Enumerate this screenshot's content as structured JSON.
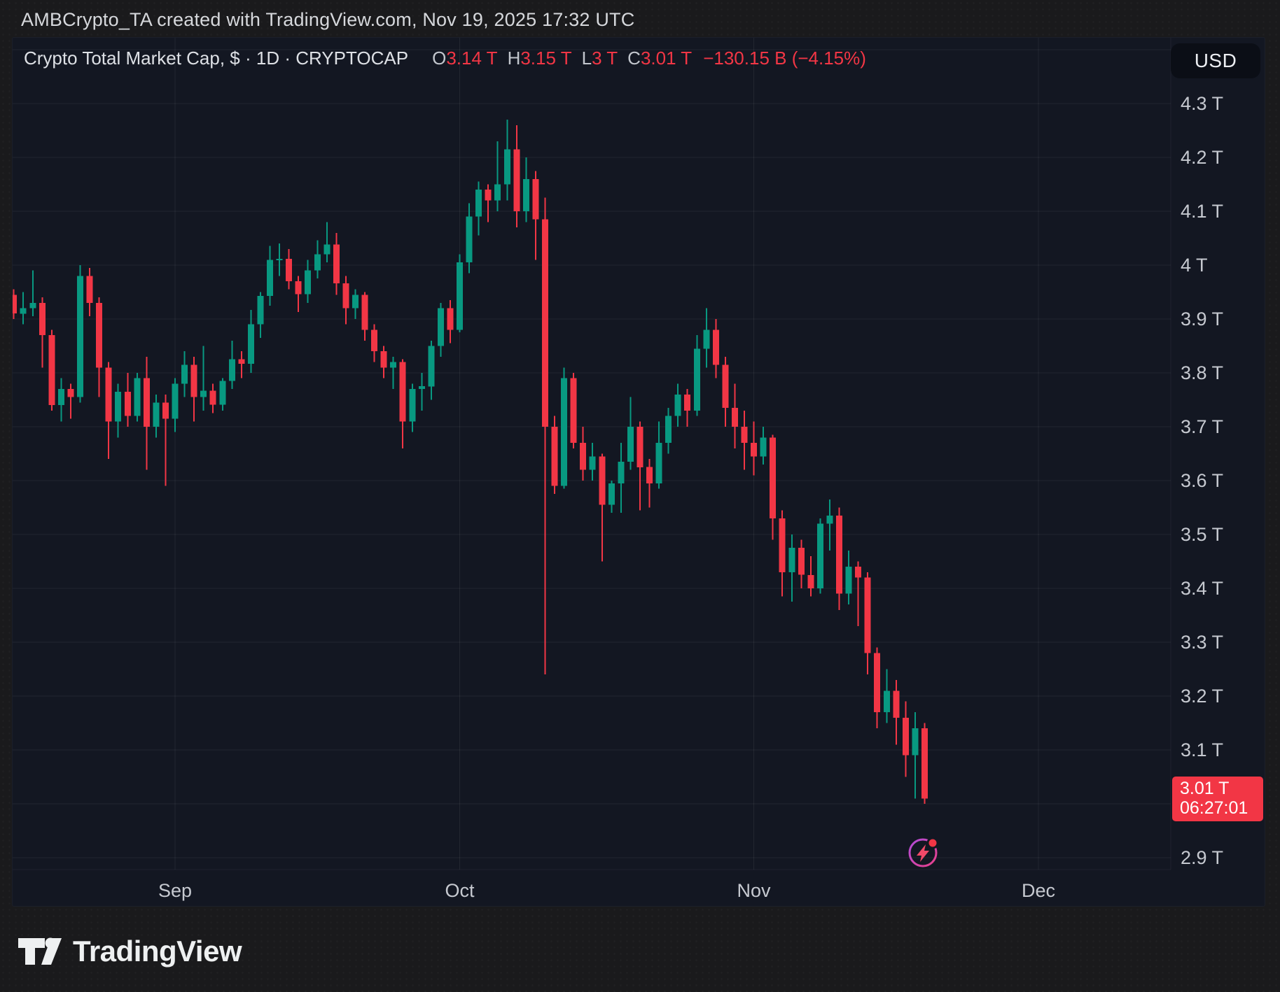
{
  "header": {
    "title": "AMBCrypto_TA created with TradingView.com, Nov 19, 2025 17:32 UTC"
  },
  "toolbar": {
    "currency_label": "USD"
  },
  "legend": {
    "title": "Crypto Total Market Cap, $ · 1D · CRYPTOCAP",
    "ohlc": [
      {
        "label": "O",
        "value": "3.14 T"
      },
      {
        "label": "H",
        "value": "3.15 T"
      },
      {
        "label": "L",
        "value": "3 T"
      },
      {
        "label": "C",
        "value": "3.01 T"
      }
    ],
    "change": "−130.15 B (−4.15%)"
  },
  "last_price_badge": {
    "price": "3.01 T",
    "countdown": "06:27:01"
  },
  "watermark_logo": {
    "text": "TradingView"
  },
  "icons": [
    "lightning-marker-icon",
    "tradingview-logo-icon"
  ],
  "colors": {
    "up": "#089981",
    "down": "#f23645",
    "badge_bg": "#f23645",
    "panel_bg": "#131722",
    "outer_bg": "#1a1a1c",
    "grid": "rgba(255,255,255,0.065)",
    "axis_text": "#c6c9d0",
    "title_text": "#d6d8dc",
    "legend_text": "#dde0e5",
    "marker_ring": "#c653c6",
    "marker_bolt": "#f24968"
  },
  "chart_data": {
    "type": "candlestick",
    "title": "Crypto Total Market Cap",
    "symbol": "CRYPTOCAP",
    "currency": "USD",
    "interval": "1D",
    "unit": "T = trillions USD",
    "y_axis": {
      "grid_max": 4.4,
      "grid_min": 2.9,
      "grid_step": 0.1,
      "ticks": [
        {
          "label": "4.3 T",
          "value": 4.3
        },
        {
          "label": "4.2 T",
          "value": 4.2
        },
        {
          "label": "4.1 T",
          "value": 4.1
        },
        {
          "label": "4 T",
          "value": 4.0
        },
        {
          "label": "3.9 T",
          "value": 3.9
        },
        {
          "label": "3.8 T",
          "value": 3.8
        },
        {
          "label": "3.7 T",
          "value": 3.7
        },
        {
          "label": "3.6 T",
          "value": 3.6
        },
        {
          "label": "3.5 T",
          "value": 3.5
        },
        {
          "label": "3.4 T",
          "value": 3.4
        },
        {
          "label": "3.3 T",
          "value": 3.3
        },
        {
          "label": "3.2 T",
          "value": 3.2
        },
        {
          "label": "3.1 T",
          "value": 3.1
        },
        {
          "label": "2.9 T",
          "value": 2.9
        }
      ]
    },
    "x_ticks": [
      {
        "label": "Sep",
        "day_index": 17
      },
      {
        "label": "Oct",
        "day_index": 47
      },
      {
        "label": "Nov",
        "day_index": 78
      },
      {
        "label": "Dec",
        "day_index": 108
      }
    ],
    "last_close": 3.01,
    "candles": [
      {
        "t": "Aug 15",
        "o": 3.945,
        "h": 3.955,
        "l": 3.9,
        "c": 3.91
      },
      {
        "t": "Aug 16",
        "o": 3.91,
        "h": 3.95,
        "l": 3.89,
        "c": 3.92
      },
      {
        "t": "Aug 17",
        "o": 3.92,
        "h": 3.99,
        "l": 3.905,
        "c": 3.93
      },
      {
        "t": "Aug 18",
        "o": 3.93,
        "h": 3.94,
        "l": 3.81,
        "c": 3.87
      },
      {
        "t": "Aug 19",
        "o": 3.87,
        "h": 3.88,
        "l": 3.73,
        "c": 3.74
      },
      {
        "t": "Aug 20",
        "o": 3.74,
        "h": 3.79,
        "l": 3.71,
        "c": 3.77
      },
      {
        "t": "Aug 21",
        "o": 3.77,
        "h": 3.78,
        "l": 3.715,
        "c": 3.755
      },
      {
        "t": "Aug 22",
        "o": 3.755,
        "h": 4.0,
        "l": 3.745,
        "c": 3.98
      },
      {
        "t": "Aug 23",
        "o": 3.98,
        "h": 3.995,
        "l": 3.905,
        "c": 3.93
      },
      {
        "t": "Aug 24",
        "o": 3.93,
        "h": 3.94,
        "l": 3.755,
        "c": 3.81
      },
      {
        "t": "Aug 25",
        "o": 3.81,
        "h": 3.82,
        "l": 3.64,
        "c": 3.71
      },
      {
        "t": "Aug 26",
        "o": 3.71,
        "h": 3.78,
        "l": 3.68,
        "c": 3.765
      },
      {
        "t": "Aug 27",
        "o": 3.765,
        "h": 3.8,
        "l": 3.7,
        "c": 3.72
      },
      {
        "t": "Aug 28",
        "o": 3.72,
        "h": 3.8,
        "l": 3.71,
        "c": 3.79
      },
      {
        "t": "Aug 29",
        "o": 3.79,
        "h": 3.83,
        "l": 3.62,
        "c": 3.7
      },
      {
        "t": "Aug 30",
        "o": 3.7,
        "h": 3.76,
        "l": 3.68,
        "c": 3.745
      },
      {
        "t": "Aug 31",
        "o": 3.745,
        "h": 3.76,
        "l": 3.59,
        "c": 3.715
      },
      {
        "t": "Sep 1",
        "o": 3.715,
        "h": 3.79,
        "l": 3.69,
        "c": 3.78
      },
      {
        "t": "Sep 2",
        "o": 3.78,
        "h": 3.84,
        "l": 3.755,
        "c": 3.815
      },
      {
        "t": "Sep 3",
        "o": 3.815,
        "h": 3.83,
        "l": 3.71,
        "c": 3.755
      },
      {
        "t": "Sep 4",
        "o": 3.755,
        "h": 3.85,
        "l": 3.73,
        "c": 3.767
      },
      {
        "t": "Sep 5",
        "o": 3.767,
        "h": 3.78,
        "l": 3.725,
        "c": 3.741
      },
      {
        "t": "Sep 6",
        "o": 3.741,
        "h": 3.79,
        "l": 3.73,
        "c": 3.785
      },
      {
        "t": "Sep 7",
        "o": 3.785,
        "h": 3.86,
        "l": 3.77,
        "c": 3.825
      },
      {
        "t": "Sep 8",
        "o": 3.825,
        "h": 3.84,
        "l": 3.79,
        "c": 3.817
      },
      {
        "t": "Sep 9",
        "o": 3.817,
        "h": 3.917,
        "l": 3.8,
        "c": 3.89
      },
      {
        "t": "Sep 10",
        "o": 3.89,
        "h": 3.95,
        "l": 3.865,
        "c": 3.943
      },
      {
        "t": "Sep 11",
        "o": 3.943,
        "h": 4.036,
        "l": 3.925,
        "c": 4.01
      },
      {
        "t": "Sep 12",
        "o": 4.01,
        "h": 4.04,
        "l": 3.98,
        "c": 4.012
      },
      {
        "t": "Sep 13",
        "o": 4.012,
        "h": 4.03,
        "l": 3.955,
        "c": 3.97
      },
      {
        "t": "Sep 14",
        "o": 3.97,
        "h": 3.98,
        "l": 3.913,
        "c": 3.946
      },
      {
        "t": "Sep 15",
        "o": 3.946,
        "h": 4.01,
        "l": 3.93,
        "c": 3.99
      },
      {
        "t": "Sep 16",
        "o": 3.99,
        "h": 4.046,
        "l": 3.975,
        "c": 4.02
      },
      {
        "t": "Sep 17",
        "o": 4.02,
        "h": 4.08,
        "l": 4.005,
        "c": 4.038
      },
      {
        "t": "Sep 18",
        "o": 4.038,
        "h": 4.06,
        "l": 3.945,
        "c": 3.966
      },
      {
        "t": "Sep 19",
        "o": 3.966,
        "h": 3.98,
        "l": 3.89,
        "c": 3.92
      },
      {
        "t": "Sep 20",
        "o": 3.92,
        "h": 3.955,
        "l": 3.9,
        "c": 3.945
      },
      {
        "t": "Sep 21",
        "o": 3.945,
        "h": 3.95,
        "l": 3.86,
        "c": 3.88
      },
      {
        "t": "Sep 22",
        "o": 3.88,
        "h": 3.89,
        "l": 3.82,
        "c": 3.84
      },
      {
        "t": "Sep 23",
        "o": 3.84,
        "h": 3.85,
        "l": 3.79,
        "c": 3.81
      },
      {
        "t": "Sep 24",
        "o": 3.81,
        "h": 3.83,
        "l": 3.77,
        "c": 3.82
      },
      {
        "t": "Sep 25",
        "o": 3.82,
        "h": 3.825,
        "l": 3.66,
        "c": 3.71
      },
      {
        "t": "Sep 26",
        "o": 3.71,
        "h": 3.78,
        "l": 3.69,
        "c": 3.77
      },
      {
        "t": "Sep 27",
        "o": 3.77,
        "h": 3.8,
        "l": 3.73,
        "c": 3.775
      },
      {
        "t": "Sep 28",
        "o": 3.775,
        "h": 3.86,
        "l": 3.75,
        "c": 3.85
      },
      {
        "t": "Sep 29",
        "o": 3.85,
        "h": 3.93,
        "l": 3.83,
        "c": 3.92
      },
      {
        "t": "Sep 30",
        "o": 3.92,
        "h": 3.935,
        "l": 3.855,
        "c": 3.88
      },
      {
        "t": "Oct 1",
        "o": 3.88,
        "h": 4.02,
        "l": 3.875,
        "c": 4.005
      },
      {
        "t": "Oct 2",
        "o": 4.005,
        "h": 4.115,
        "l": 3.985,
        "c": 4.09
      },
      {
        "t": "Oct 3",
        "o": 4.09,
        "h": 4.155,
        "l": 4.055,
        "c": 4.14
      },
      {
        "t": "Oct 4",
        "o": 4.14,
        "h": 4.15,
        "l": 4.08,
        "c": 4.12
      },
      {
        "t": "Oct 5",
        "o": 4.12,
        "h": 4.23,
        "l": 4.1,
        "c": 4.15
      },
      {
        "t": "Oct 6",
        "o": 4.15,
        "h": 4.27,
        "l": 4.12,
        "c": 4.215
      },
      {
        "t": "Oct 7",
        "o": 4.215,
        "h": 4.26,
        "l": 4.07,
        "c": 4.1
      },
      {
        "t": "Oct 8",
        "o": 4.1,
        "h": 4.2,
        "l": 4.08,
        "c": 4.16
      },
      {
        "t": "Oct 9",
        "o": 4.16,
        "h": 4.175,
        "l": 4.01,
        "c": 4.085
      },
      {
        "t": "Oct 10",
        "o": 4.085,
        "h": 4.125,
        "l": 3.24,
        "c": 3.7
      },
      {
        "t": "Oct 11",
        "o": 3.7,
        "h": 3.72,
        "l": 3.575,
        "c": 3.59
      },
      {
        "t": "Oct 12",
        "o": 3.59,
        "h": 3.81,
        "l": 3.585,
        "c": 3.79
      },
      {
        "t": "Oct 13",
        "o": 3.79,
        "h": 3.8,
        "l": 3.66,
        "c": 3.67
      },
      {
        "t": "Oct 14",
        "o": 3.67,
        "h": 3.7,
        "l": 3.6,
        "c": 3.62
      },
      {
        "t": "Oct 15",
        "o": 3.62,
        "h": 3.67,
        "l": 3.6,
        "c": 3.645
      },
      {
        "t": "Oct 16",
        "o": 3.645,
        "h": 3.65,
        "l": 3.45,
        "c": 3.555
      },
      {
        "t": "Oct 17",
        "o": 3.555,
        "h": 3.6,
        "l": 3.54,
        "c": 3.595
      },
      {
        "t": "Oct 18",
        "o": 3.595,
        "h": 3.67,
        "l": 3.54,
        "c": 3.635
      },
      {
        "t": "Oct 19",
        "o": 3.635,
        "h": 3.755,
        "l": 3.62,
        "c": 3.7
      },
      {
        "t": "Oct 20",
        "o": 3.7,
        "h": 3.71,
        "l": 3.545,
        "c": 3.625
      },
      {
        "t": "Oct 21",
        "o": 3.625,
        "h": 3.64,
        "l": 3.55,
        "c": 3.595
      },
      {
        "t": "Oct 22",
        "o": 3.595,
        "h": 3.71,
        "l": 3.585,
        "c": 3.67
      },
      {
        "t": "Oct 23",
        "o": 3.67,
        "h": 3.735,
        "l": 3.65,
        "c": 3.72
      },
      {
        "t": "Oct 24",
        "o": 3.72,
        "h": 3.78,
        "l": 3.7,
        "c": 3.76
      },
      {
        "t": "Oct 25",
        "o": 3.76,
        "h": 3.77,
        "l": 3.7,
        "c": 3.73
      },
      {
        "t": "Oct 26",
        "o": 3.73,
        "h": 3.87,
        "l": 3.72,
        "c": 3.845
      },
      {
        "t": "Oct 27",
        "o": 3.845,
        "h": 3.92,
        "l": 3.81,
        "c": 3.88
      },
      {
        "t": "Oct 28",
        "o": 3.88,
        "h": 3.9,
        "l": 3.79,
        "c": 3.815
      },
      {
        "t": "Oct 29",
        "o": 3.815,
        "h": 3.83,
        "l": 3.7,
        "c": 3.735
      },
      {
        "t": "Oct 30",
        "o": 3.735,
        "h": 3.78,
        "l": 3.66,
        "c": 3.7
      },
      {
        "t": "Oct 31",
        "o": 3.7,
        "h": 3.73,
        "l": 3.62,
        "c": 3.67
      },
      {
        "t": "Nov 1",
        "o": 3.67,
        "h": 3.71,
        "l": 3.61,
        "c": 3.645
      },
      {
        "t": "Nov 2",
        "o": 3.645,
        "h": 3.7,
        "l": 3.63,
        "c": 3.68
      },
      {
        "t": "Nov 3",
        "o": 3.68,
        "h": 3.685,
        "l": 3.49,
        "c": 3.53
      },
      {
        "t": "Nov 4",
        "o": 3.53,
        "h": 3.545,
        "l": 3.385,
        "c": 3.43
      },
      {
        "t": "Nov 5",
        "o": 3.43,
        "h": 3.5,
        "l": 3.375,
        "c": 3.475
      },
      {
        "t": "Nov 6",
        "o": 3.475,
        "h": 3.49,
        "l": 3.4,
        "c": 3.425
      },
      {
        "t": "Nov 7",
        "o": 3.425,
        "h": 3.46,
        "l": 3.385,
        "c": 3.4
      },
      {
        "t": "Nov 8",
        "o": 3.4,
        "h": 3.53,
        "l": 3.39,
        "c": 3.52
      },
      {
        "t": "Nov 9",
        "o": 3.52,
        "h": 3.565,
        "l": 3.47,
        "c": 3.535
      },
      {
        "t": "Nov 10",
        "o": 3.535,
        "h": 3.55,
        "l": 3.36,
        "c": 3.39
      },
      {
        "t": "Nov 11",
        "o": 3.39,
        "h": 3.47,
        "l": 3.37,
        "c": 3.44
      },
      {
        "t": "Nov 12",
        "o": 3.44,
        "h": 3.45,
        "l": 3.33,
        "c": 3.42
      },
      {
        "t": "Nov 13",
        "o": 3.42,
        "h": 3.43,
        "l": 3.24,
        "c": 3.28
      },
      {
        "t": "Nov 14",
        "o": 3.28,
        "h": 3.29,
        "l": 3.14,
        "c": 3.17
      },
      {
        "t": "Nov 15",
        "o": 3.17,
        "h": 3.25,
        "l": 3.15,
        "c": 3.21
      },
      {
        "t": "Nov 16",
        "o": 3.21,
        "h": 3.23,
        "l": 3.11,
        "c": 3.16
      },
      {
        "t": "Nov 17",
        "o": 3.16,
        "h": 3.19,
        "l": 3.05,
        "c": 3.09
      },
      {
        "t": "Nov 18",
        "o": 3.09,
        "h": 3.17,
        "l": 3.01,
        "c": 3.14
      },
      {
        "t": "Nov 19",
        "o": 3.14,
        "h": 3.15,
        "l": 3.0,
        "c": 3.01
      }
    ]
  }
}
